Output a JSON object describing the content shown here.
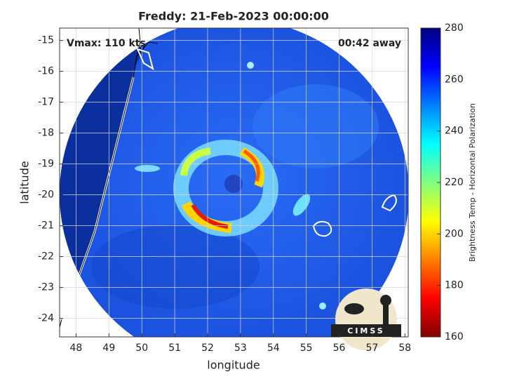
{
  "chart_data": {
    "type": "map",
    "title": "Freddy: 21-Feb-2023 00:00:00",
    "xlabel": "longitude",
    "ylabel": "latitude",
    "xlim": [
      47.5,
      58.1
    ],
    "ylim": [
      -24.6,
      -14.6
    ],
    "xticks": [
      48,
      49,
      50,
      51,
      52,
      53,
      54,
      55,
      56,
      57,
      58
    ],
    "yticks": [
      -15,
      -16,
      -17,
      -18,
      -19,
      -20,
      -21,
      -22,
      -23,
      -24
    ],
    "grid": true,
    "annotations": {
      "left": "Vmax: 110 kts",
      "right": "00:42 away",
      "logo": "CIMSS"
    },
    "colorbar": {
      "label": "Brightness Temp - Horizontal Polarization",
      "clim": [
        160,
        280
      ],
      "ticks": [
        160,
        180,
        200,
        220,
        240,
        260,
        280
      ],
      "colormap": "jet"
    }
  }
}
